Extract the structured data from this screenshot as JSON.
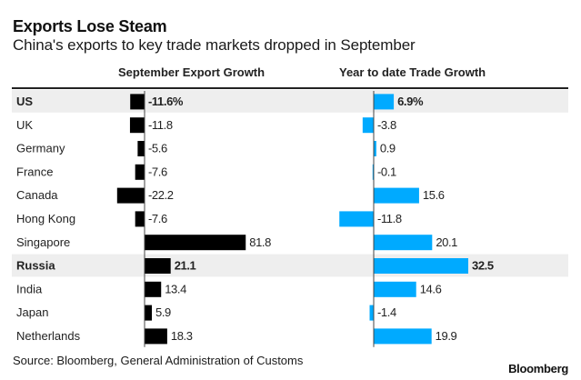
{
  "title": "Exports Lose Steam",
  "subtitle": "China's exports to key trade markets dropped in September",
  "source": "Source: Bloomberg, General Administration of Customs",
  "brand": "Bloomberg",
  "colors": {
    "left_bar": "#000000",
    "right_bar": "#00aaff",
    "highlight_row": "#eeeeee",
    "axis": "#444444"
  },
  "chart_data": {
    "type": "bar",
    "orientation": "horizontal",
    "title": "Exports Lose Steam",
    "subtitle": "China's exports to key trade markets dropped in September",
    "categories": [
      "US",
      "UK",
      "Germany",
      "France",
      "Canada",
      "Hong Kong",
      "Singapore",
      "Russia",
      "India",
      "Japan",
      "Netherlands"
    ],
    "highlighted": [
      "US",
      "Russia"
    ],
    "series": [
      {
        "name": "September Export Growth",
        "values": [
          -11.6,
          -11.8,
          -5.6,
          -7.6,
          -22.2,
          -7.6,
          81.8,
          21.1,
          13.4,
          5.9,
          18.3
        ],
        "labels": [
          "-11.6%",
          "-11.8",
          "-5.6",
          "-7.6",
          "-22.2",
          "-7.6",
          "81.8",
          "21.1",
          "13.4",
          "5.9",
          "18.3"
        ],
        "color": "#000000"
      },
      {
        "name": "Year to date Trade Growth",
        "values": [
          6.9,
          -3.8,
          0.9,
          -0.1,
          15.6,
          -11.8,
          20.1,
          32.5,
          14.6,
          -1.4,
          19.9
        ],
        "labels": [
          "6.9%",
          "-3.8",
          "0.9",
          "-0.1",
          "15.6",
          "-11.8",
          "20.1",
          "32.5",
          "14.6",
          "-1.4",
          "19.9"
        ],
        "color": "#00aaff"
      }
    ],
    "unit": "%",
    "grid": false,
    "legend": "none"
  }
}
